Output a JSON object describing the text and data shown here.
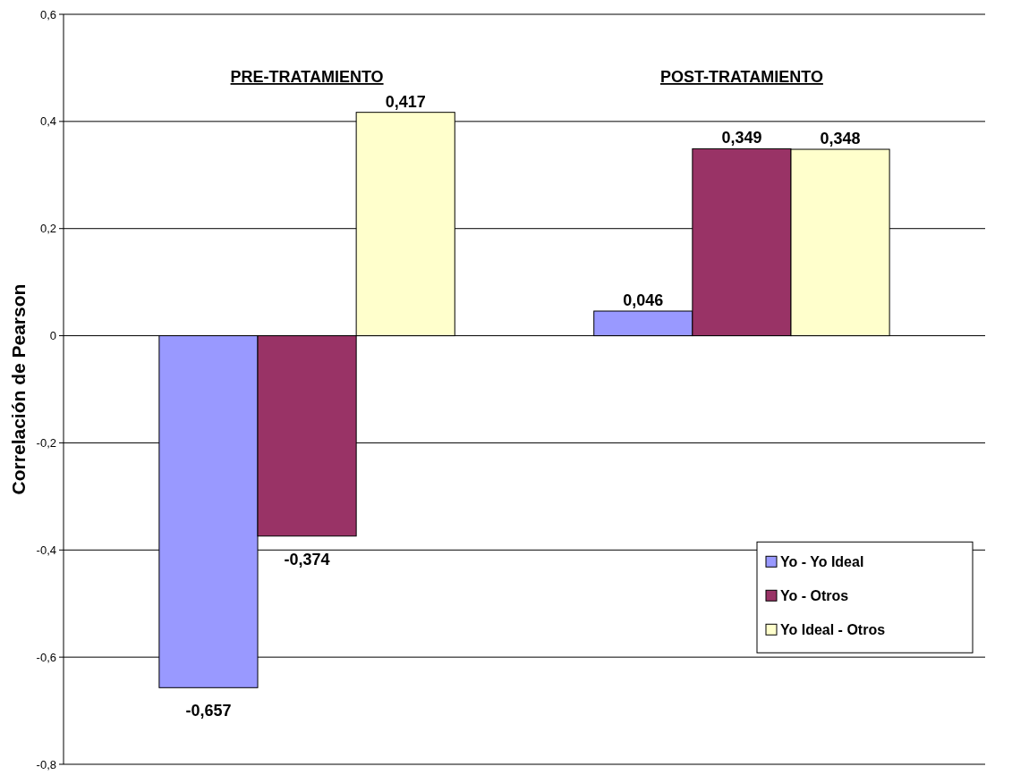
{
  "chart_data": {
    "type": "bar",
    "ylabel": "Correlación de Pearson",
    "categories": [
      "PRE-TRATAMIENTO",
      "POST-TRATAMIENTO"
    ],
    "series": [
      {
        "name": "Yo - Yo Ideal",
        "color": "#9999ff",
        "values": [
          -0.657,
          0.046
        ],
        "value_labels": [
          "-0,657",
          "0,046"
        ]
      },
      {
        "name": "Yo - Otros",
        "color": "#993366",
        "values": [
          -0.374,
          0.349
        ],
        "value_labels": [
          "-0,374",
          "0,349"
        ]
      },
      {
        "name": "Yo Ideal - Otros",
        "color": "#ffffcc",
        "values": [
          0.417,
          0.348
        ],
        "value_labels": [
          "0,417",
          "0,348"
        ]
      }
    ],
    "ylim": [
      -0.8,
      0.6
    ],
    "yticks": [
      {
        "value": -0.8,
        "label": "-0,8"
      },
      {
        "value": -0.6,
        "label": "-0,6"
      },
      {
        "value": -0.4,
        "label": "-0,4"
      },
      {
        "value": -0.2,
        "label": "-0,2"
      },
      0,
      {
        "value": 0.2,
        "label": "0,2"
      },
      {
        "value": 0.4,
        "label": "0,4"
      },
      {
        "value": 0.6,
        "label": "0,6"
      }
    ],
    "grid": "y",
    "legend": "bottom right"
  }
}
